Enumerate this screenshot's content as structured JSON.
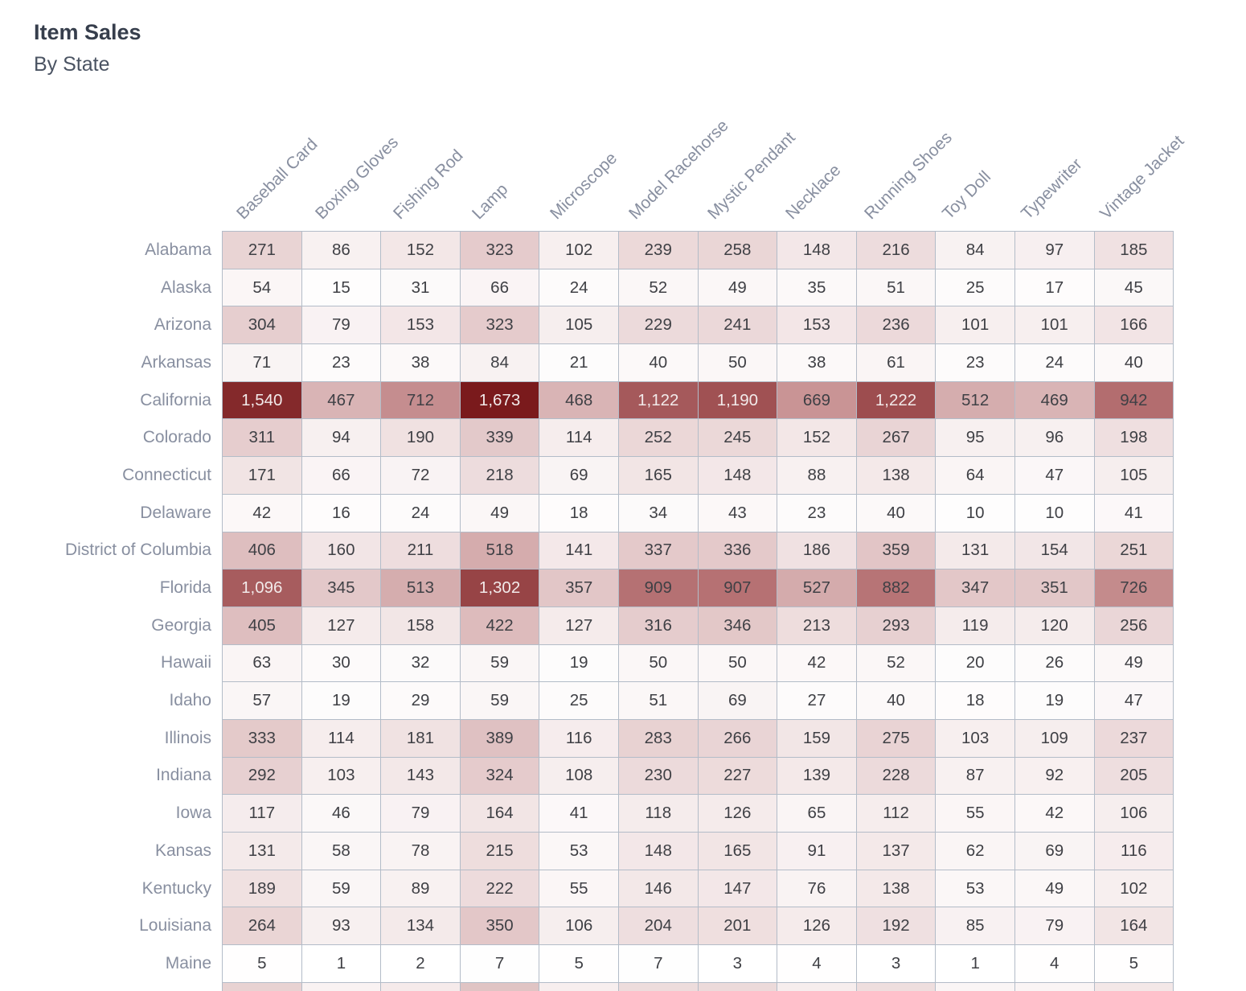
{
  "header": {
    "title": "Item Sales",
    "subtitle": "By State"
  },
  "chart_data": {
    "type": "heatmap",
    "title": "Item Sales",
    "subtitle": "By State",
    "columns": [
      "Baseball Card",
      "Boxing Gloves",
      "Fishing Rod",
      "Lamp",
      "Microscope",
      "Model Racehorse",
      "Mystic Pendant",
      "Necklace",
      "Running Shoes",
      "Toy Doll",
      "Typewriter",
      "Vintage Jacket"
    ],
    "rows": [
      {
        "state": "Alabama",
        "values": [
          271,
          86,
          152,
          323,
          102,
          239,
          258,
          148,
          216,
          84,
          97,
          185
        ]
      },
      {
        "state": "Alaska",
        "values": [
          54,
          15,
          31,
          66,
          24,
          52,
          49,
          35,
          51,
          25,
          17,
          45
        ]
      },
      {
        "state": "Arizona",
        "values": [
          304,
          79,
          153,
          323,
          105,
          229,
          241,
          153,
          236,
          101,
          101,
          166
        ]
      },
      {
        "state": "Arkansas",
        "values": [
          71,
          23,
          38,
          84,
          21,
          40,
          50,
          38,
          61,
          23,
          24,
          40
        ]
      },
      {
        "state": "California",
        "values": [
          1540,
          467,
          712,
          1673,
          468,
          1122,
          1190,
          669,
          1222,
          512,
          469,
          942
        ]
      },
      {
        "state": "Colorado",
        "values": [
          311,
          94,
          190,
          339,
          114,
          252,
          245,
          152,
          267,
          95,
          96,
          198
        ]
      },
      {
        "state": "Connecticut",
        "values": [
          171,
          66,
          72,
          218,
          69,
          165,
          148,
          88,
          138,
          64,
          47,
          105
        ]
      },
      {
        "state": "Delaware",
        "values": [
          42,
          16,
          24,
          49,
          18,
          34,
          43,
          23,
          40,
          10,
          10,
          41
        ]
      },
      {
        "state": "District of Columbia",
        "values": [
          406,
          160,
          211,
          518,
          141,
          337,
          336,
          186,
          359,
          131,
          154,
          251
        ]
      },
      {
        "state": "Florida",
        "values": [
          1096,
          345,
          513,
          1302,
          357,
          909,
          907,
          527,
          882,
          347,
          351,
          726
        ]
      },
      {
        "state": "Georgia",
        "values": [
          405,
          127,
          158,
          422,
          127,
          316,
          346,
          213,
          293,
          119,
          120,
          256
        ]
      },
      {
        "state": "Hawaii",
        "values": [
          63,
          30,
          32,
          59,
          19,
          50,
          50,
          42,
          52,
          20,
          26,
          49
        ]
      },
      {
        "state": "Idaho",
        "values": [
          57,
          19,
          29,
          59,
          25,
          51,
          69,
          27,
          40,
          18,
          19,
          47
        ]
      },
      {
        "state": "Illinois",
        "values": [
          333,
          114,
          181,
          389,
          116,
          283,
          266,
          159,
          275,
          103,
          109,
          237
        ]
      },
      {
        "state": "Indiana",
        "values": [
          292,
          103,
          143,
          324,
          108,
          230,
          227,
          139,
          228,
          87,
          92,
          205
        ]
      },
      {
        "state": "Iowa",
        "values": [
          117,
          46,
          79,
          164,
          41,
          118,
          126,
          65,
          112,
          55,
          42,
          106
        ]
      },
      {
        "state": "Kansas",
        "values": [
          131,
          58,
          78,
          215,
          53,
          148,
          165,
          91,
          137,
          62,
          69,
          116
        ]
      },
      {
        "state": "Kentucky",
        "values": [
          189,
          59,
          89,
          222,
          55,
          146,
          147,
          76,
          138,
          53,
          49,
          102
        ]
      },
      {
        "state": "Louisiana",
        "values": [
          264,
          93,
          134,
          350,
          106,
          204,
          201,
          126,
          192,
          85,
          79,
          164
        ]
      },
      {
        "state": "Maine",
        "values": [
          5,
          1,
          2,
          7,
          5,
          7,
          3,
          4,
          3,
          1,
          4,
          5
        ]
      }
    ],
    "value_range": [
      0,
      1673
    ],
    "color_scale": {
      "min": "#ffffff",
      "mid": "#bb797b",
      "max": "#7a1a1c",
      "dark_cell_text": "#f2eaea",
      "light_cell_text": "#3f4045"
    },
    "grid_color": "#b3bcc8",
    "label_color": "#888fa0",
    "legend_position": "none",
    "partial_next_row_colors": [
      "#e8d2d2",
      "#f9f2f2",
      "#f5eaea",
      "#e0c4c4",
      "#f7eeee",
      "#eddcdc",
      "#ecdada",
      "#f6eded",
      "#eedede",
      "#faf5f5",
      "#faf4f4",
      "#f3e7e7"
    ]
  }
}
